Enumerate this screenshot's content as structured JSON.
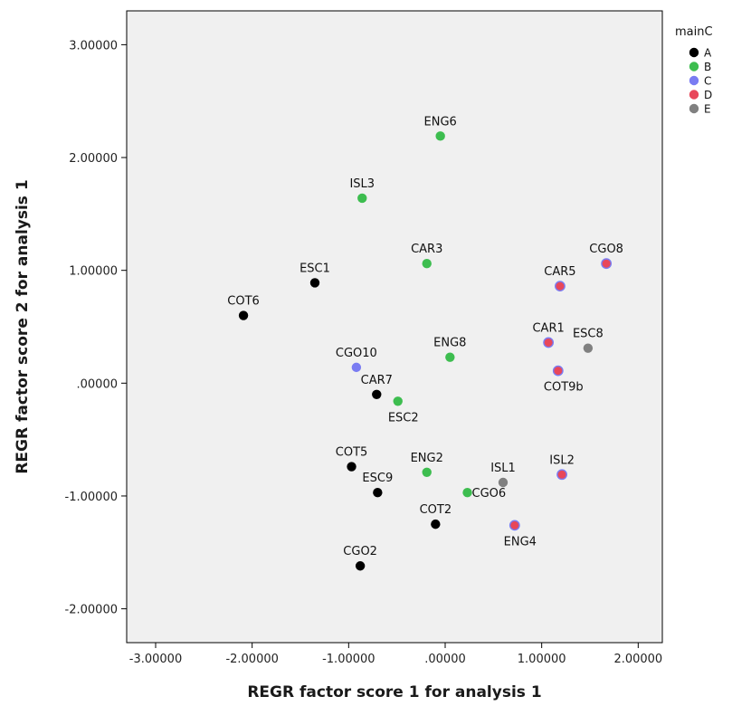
{
  "chart_data": {
    "type": "scatter",
    "xlabel": "REGR factor score   1 for analysis 1",
    "ylabel": "REGR factor score   2 for analysis 1",
    "xlim": [
      -3.3,
      2.25
    ],
    "ylim": [
      -2.3,
      3.3
    ],
    "xticks": [
      -3.0,
      -2.0,
      -1.0,
      0.0,
      1.0,
      2.0
    ],
    "xtick_labels": [
      "-3.00000",
      "-2.00000",
      "-1.00000",
      ".00000",
      "1.00000",
      "2.00000"
    ],
    "yticks": [
      3.0,
      2.0,
      1.0,
      0.0,
      -1.0,
      -2.0
    ],
    "ytick_labels": [
      "3.00000",
      "2.00000",
      "1.00000",
      ".00000",
      "-1.00000",
      "-2.00000"
    ],
    "grid": false,
    "plot_background": "#f0f0f0",
    "legend": {
      "title": "mainC",
      "placement": "right",
      "entries": [
        {
          "name": "A",
          "color": "#000000"
        },
        {
          "name": "B",
          "color": "#3dbd4f"
        },
        {
          "name": "C",
          "color": "#7a7cf2"
        },
        {
          "name": "D",
          "color": "#e8475a"
        },
        {
          "name": "E",
          "color": "#808080"
        }
      ]
    },
    "points": [
      {
        "label": "ENG6",
        "x": -0.05,
        "y": 2.19,
        "group": "B"
      },
      {
        "label": "ISL3",
        "x": -0.86,
        "y": 1.64,
        "group": "B"
      },
      {
        "label": "CAR3",
        "x": -0.19,
        "y": 1.06,
        "group": "B"
      },
      {
        "label": "ESC1",
        "x": -1.35,
        "y": 0.89,
        "group": "A"
      },
      {
        "label": "COT6",
        "x": -2.09,
        "y": 0.6,
        "group": "A"
      },
      {
        "label": "CGO10",
        "x": -0.92,
        "y": 0.14,
        "group": "C"
      },
      {
        "label": "ENG8",
        "x": 0.05,
        "y": 0.23,
        "group": "B"
      },
      {
        "label": "CAR7",
        "x": -0.71,
        "y": -0.1,
        "group": "A"
      },
      {
        "label": "ESC2",
        "x": -0.49,
        "y": -0.16,
        "group": "B"
      },
      {
        "label": "CGO8",
        "x": 1.67,
        "y": 1.06,
        "group": "D"
      },
      {
        "label": "CAR5",
        "x": 1.19,
        "y": 0.86,
        "group": "D"
      },
      {
        "label": "CAR1",
        "x": 1.07,
        "y": 0.36,
        "group": "D"
      },
      {
        "label": "ESC8",
        "x": 1.48,
        "y": 0.31,
        "group": "E"
      },
      {
        "label": "COT9b",
        "x": 1.17,
        "y": 0.11,
        "group": "D"
      },
      {
        "label": "COT5",
        "x": -0.97,
        "y": -0.74,
        "group": "A"
      },
      {
        "label": "ENG2",
        "x": -0.19,
        "y": -0.79,
        "group": "B"
      },
      {
        "label": "ESC9",
        "x": -0.7,
        "y": -0.97,
        "group": "A"
      },
      {
        "label": "CGO6",
        "x": 0.23,
        "y": -0.97,
        "group": "B"
      },
      {
        "label": "ISL1",
        "x": 0.6,
        "y": -0.88,
        "group": "E"
      },
      {
        "label": "ISL2",
        "x": 1.21,
        "y": -0.81,
        "group": "D"
      },
      {
        "label": "COT2",
        "x": -0.1,
        "y": -1.25,
        "group": "A"
      },
      {
        "label": "ENG4",
        "x": 0.72,
        "y": -1.26,
        "group": "D"
      },
      {
        "label": "CGO2",
        "x": -0.88,
        "y": -1.62,
        "group": "A"
      }
    ]
  }
}
